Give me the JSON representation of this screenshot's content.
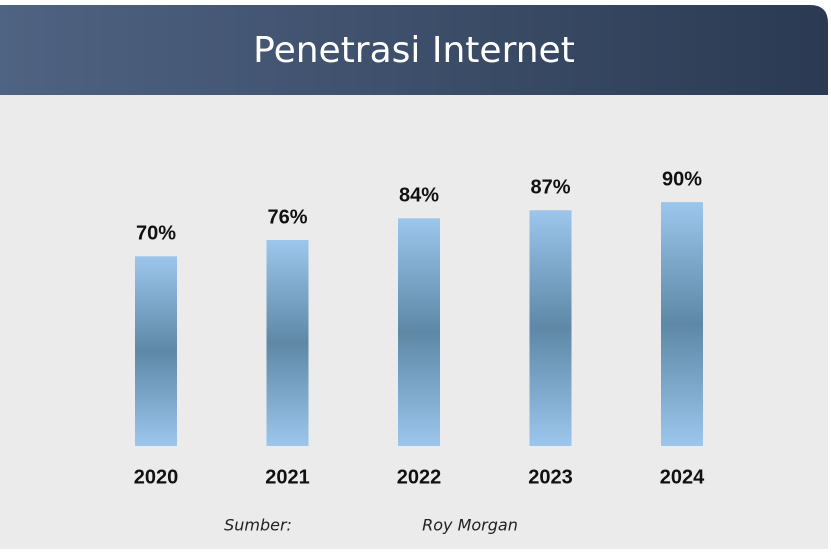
{
  "chart_data": {
    "type": "bar",
    "title": "Penetrasi Internet",
    "categories": [
      "2020",
      "2021",
      "2022",
      "2023",
      "2024"
    ],
    "values": [
      70,
      76,
      84,
      87,
      90
    ],
    "value_labels": [
      "70%",
      "76%",
      "84%",
      "87%",
      "90%"
    ],
    "source_label": "Sumber:",
    "source": "Roy Morgan"
  }
}
